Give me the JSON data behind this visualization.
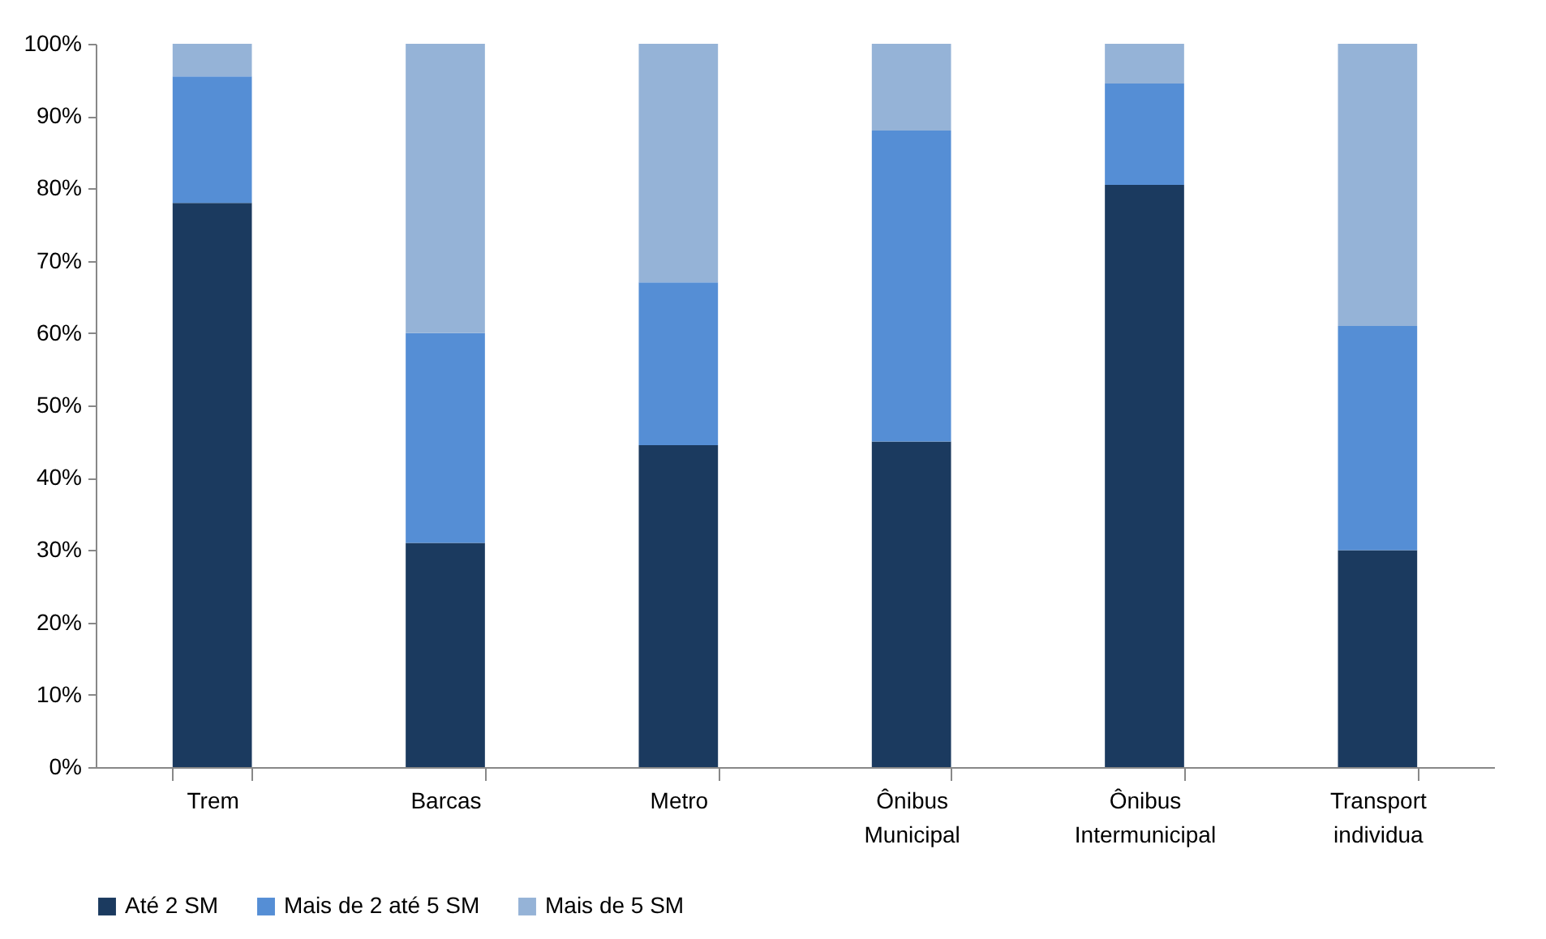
{
  "chart_data": {
    "type": "bar",
    "stacked": true,
    "categories": [
      "Trem",
      "Barcas",
      "Metro",
      "Ônibus Municipal",
      "Ônibus Intermunicipal",
      "Transport individua"
    ],
    "series": [
      {
        "name": "Até 2 SM",
        "color": "#1b3a5f",
        "values": [
          78,
          31,
          44.5,
          45,
          80.5,
          30
        ]
      },
      {
        "name": "Mais de 2 até 5 SM",
        "color": "#558ed5",
        "values": [
          17.5,
          29,
          22.5,
          43,
          14,
          31
        ]
      },
      {
        "name": "Mais de 5 SM",
        "color": "#95b3d7",
        "values": [
          4.5,
          40,
          33,
          12,
          5.5,
          39
        ]
      }
    ],
    "ylim": [
      0,
      100
    ],
    "yticks": [
      {
        "value": 0,
        "label": "0%"
      },
      {
        "value": 10,
        "label": "10%"
      },
      {
        "value": 20,
        "label": "20%"
      },
      {
        "value": 30,
        "label": "30%"
      },
      {
        "value": 40,
        "label": "40%"
      },
      {
        "value": 50,
        "label": "50%"
      },
      {
        "value": 60,
        "label": "60%"
      },
      {
        "value": 70,
        "label": "70%"
      },
      {
        "value": 80,
        "label": "80%"
      },
      {
        "value": 90,
        "label": "90%"
      },
      {
        "value": 100,
        "label": "100%"
      }
    ],
    "legend": "bottom"
  }
}
